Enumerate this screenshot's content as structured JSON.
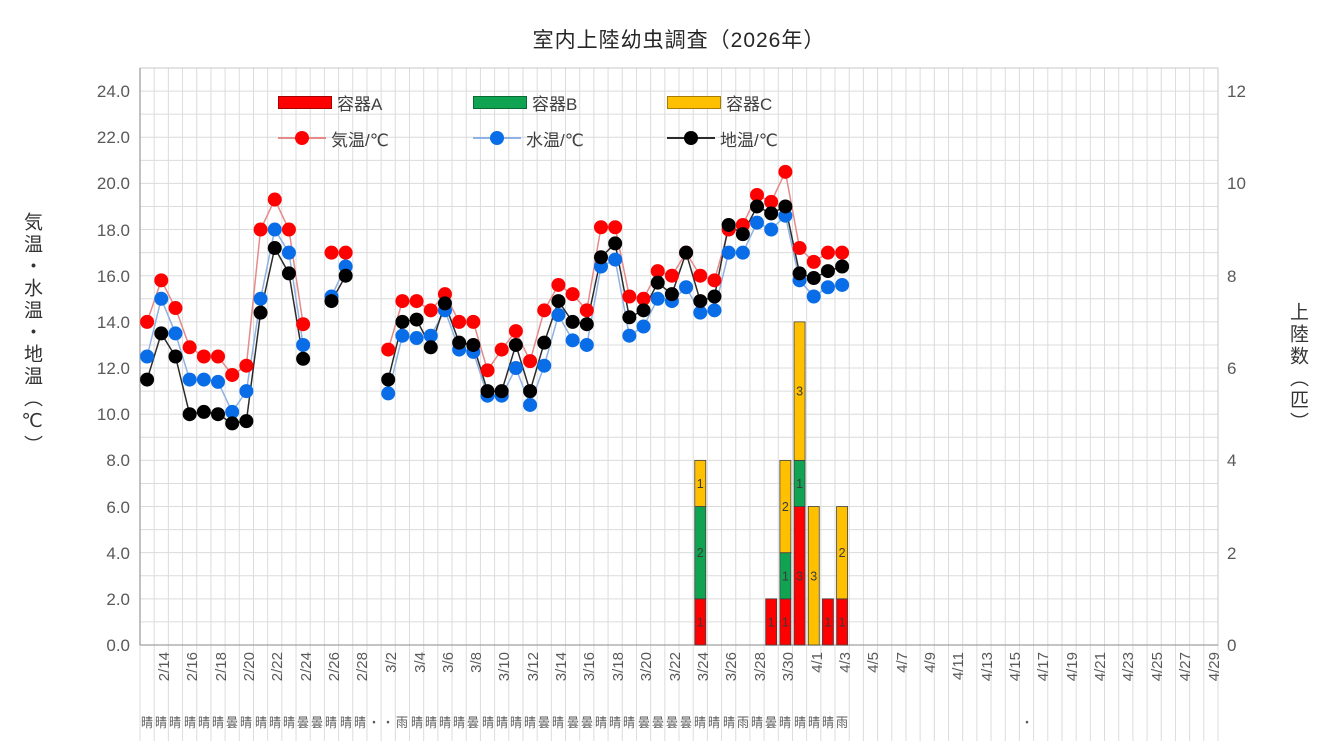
{
  "title": "室内上陸幼虫調査（2026年）",
  "axes": {
    "left_title": "気温・水温・地温（℃）",
    "right_title": "上陸数（匹）"
  },
  "chart_data": {
    "type": "combo: stacked bar + line",
    "categories": [
      "2/14",
      "2/15",
      "2/16",
      "2/17",
      "2/18",
      "2/19",
      "2/20",
      "2/21",
      "2/22",
      "2/23",
      "2/24",
      "2/25",
      "2/26",
      "2/27",
      "2/28",
      "3/1",
      "3/2",
      "3/3",
      "3/4",
      "3/5",
      "3/6",
      "3/7",
      "3/8",
      "3/9",
      "3/10",
      "3/11",
      "3/12",
      "3/13",
      "3/14",
      "3/15",
      "3/16",
      "3/17",
      "3/18",
      "3/19",
      "3/20",
      "3/21",
      "3/22",
      "3/23",
      "3/24",
      "3/25",
      "3/26",
      "3/27",
      "3/28",
      "3/29",
      "3/30",
      "3/31",
      "4/1",
      "4/2",
      "4/3",
      "4/4",
      "4/5",
      "4/6",
      "4/7",
      "4/8",
      "4/9",
      "4/10",
      "4/11",
      "4/12",
      "4/13",
      "4/14",
      "4/15",
      "4/16",
      "4/17",
      "4/18",
      "4/19",
      "4/20",
      "4/21",
      "4/22",
      "4/23",
      "4/24",
      "4/25",
      "4/26",
      "4/27",
      "4/28",
      "4/29",
      "4/30"
    ],
    "x_label_every": 2,
    "left_axis": {
      "min": 0,
      "max": 25,
      "tick_step": 2,
      "decimals": 1
    },
    "right_axis": {
      "min": 0,
      "max": 12.5,
      "tick_step": 2,
      "decimals": 0
    },
    "grid": {
      "minor_h_step": 1,
      "color": "#dcdcdc",
      "axis_color": "#a0a0a0",
      "border_color": "#c8c8c8"
    },
    "bar_series": [
      {
        "name": "容器A",
        "color": "#fe0000"
      },
      {
        "name": "容器B",
        "color": "#10a351"
      },
      {
        "name": "容器C",
        "color": "#ffc000"
      }
    ],
    "bars": [
      {
        "date": "3/25",
        "values": [
          1,
          2,
          1
        ]
      },
      {
        "date": "3/30",
        "values": [
          1,
          0,
          0
        ]
      },
      {
        "date": "3/31",
        "values": [
          1,
          1,
          2
        ]
      },
      {
        "date": "4/1",
        "values": [
          3,
          1,
          3
        ]
      },
      {
        "date": "4/2",
        "values": [
          0,
          0,
          3
        ]
      },
      {
        "date": "4/3",
        "values": [
          1,
          0,
          0
        ]
      },
      {
        "date": "4/4",
        "values": [
          1,
          0,
          2
        ]
      }
    ],
    "bar_label_color": "#3a3a3a",
    "line_series": [
      {
        "name": "気温/℃",
        "marker_color": "#fe0000",
        "line_color": "#e58a8a",
        "values": [
          14.0,
          15.8,
          14.6,
          12.9,
          12.5,
          12.5,
          11.7,
          12.1,
          18.0,
          19.3,
          18.0,
          13.9,
          null,
          17.0,
          17.0,
          null,
          null,
          12.8,
          14.9,
          14.9,
          14.5,
          15.2,
          14.0,
          14.0,
          11.9,
          12.8,
          13.6,
          12.3,
          14.5,
          15.6,
          15.2,
          14.5,
          18.1,
          18.1,
          15.1,
          15.0,
          16.2,
          16.0,
          17.0,
          16.0,
          15.8,
          18.0,
          18.2,
          19.5,
          19.2,
          20.5,
          17.2,
          16.6,
          17.0,
          17.0
        ]
      },
      {
        "name": "水温/℃",
        "marker_color": "#0a6de8",
        "line_color": "#8db2e3",
        "values": [
          12.5,
          15.0,
          13.5,
          11.5,
          11.5,
          11.4,
          10.1,
          11.0,
          15.0,
          18.0,
          17.0,
          13.0,
          null,
          15.1,
          16.4,
          null,
          null,
          10.9,
          13.4,
          13.3,
          13.4,
          14.5,
          12.8,
          12.7,
          10.8,
          10.8,
          12.0,
          10.4,
          12.1,
          14.3,
          13.2,
          13.0,
          16.4,
          16.7,
          13.4,
          13.8,
          15.0,
          14.9,
          15.5,
          14.4,
          14.5,
          17.0,
          17.0,
          18.3,
          18.0,
          18.6,
          15.8,
          15.1,
          15.5,
          15.6
        ]
      },
      {
        "name": "地温/℃",
        "marker_color": "#000000",
        "line_color": "#2b2b2b",
        "values": [
          11.5,
          13.5,
          12.5,
          10.0,
          10.1,
          10.0,
          9.6,
          9.7,
          14.4,
          17.2,
          16.1,
          12.4,
          null,
          14.9,
          16.0,
          null,
          null,
          11.5,
          14.0,
          14.1,
          12.9,
          14.8,
          13.1,
          13.0,
          11.0,
          11.0,
          13.0,
          11.0,
          13.1,
          14.9,
          14.0,
          13.9,
          16.8,
          17.4,
          14.2,
          14.5,
          15.7,
          15.2,
          17.0,
          14.9,
          15.1,
          18.2,
          17.8,
          19.0,
          18.7,
          19.0,
          16.1,
          15.9,
          16.2,
          16.4
        ]
      }
    ],
    "weather_row": [
      "晴",
      "晴",
      "晴",
      "晴",
      "晴",
      "晴",
      "曇",
      "晴",
      "晴",
      "晴",
      "晴",
      "曇",
      "曇",
      "晴",
      "晴",
      "晴",
      "・",
      "・",
      "雨",
      "晴",
      "晴",
      "晴",
      "晴",
      "曇",
      "晴",
      "晴",
      "晴",
      "晴",
      "曇",
      "晴",
      "曇",
      "曇",
      "晴",
      "晴",
      "晴",
      "曇",
      "曇",
      "曇",
      "曇",
      "晴",
      "晴",
      "晴",
      "雨",
      "晴",
      "曇",
      "晴",
      "晴",
      "晴",
      "晴",
      "雨"
    ],
    "weather_extra": {
      "date": "4/17",
      "symbol": "・"
    }
  }
}
